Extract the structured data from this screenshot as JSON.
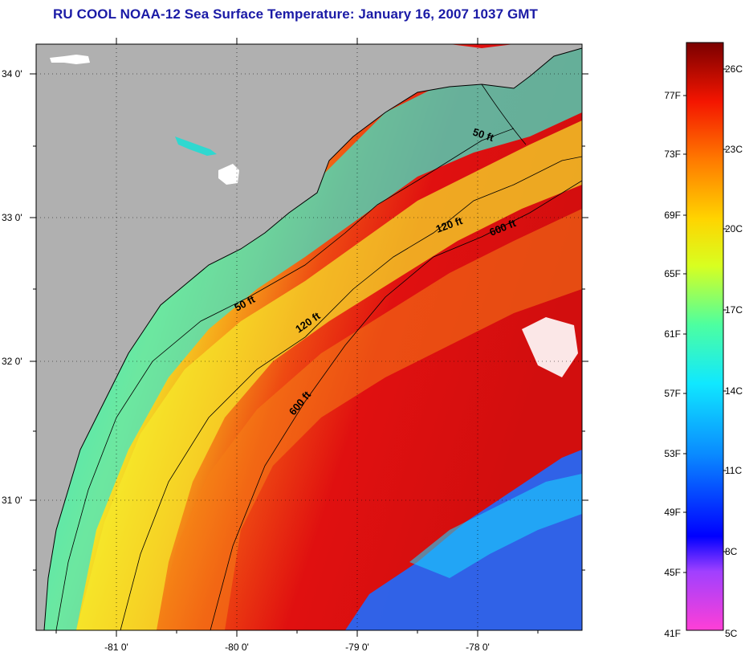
{
  "title": "RU COOL  NOAA-12  Sea Surface Temperature:  January 16, 2007 1037 GMT",
  "map": {
    "lat_ticks": [
      "34 0'",
      "33 0'",
      "32 0'",
      "31 0'"
    ],
    "lon_ticks": [
      "-81 0'",
      "-80 0'",
      "-79 0'",
      "-78 0'"
    ],
    "contour_labels": [
      "50 ft",
      "120 ft",
      "600 ft",
      "50 ft",
      "120 ft",
      "600 ft"
    ],
    "colors": {
      "land": "#b0b0b0",
      "cold": "#1e6cff",
      "cool": "#19e8e8",
      "mid": "#f2e628",
      "warm": "#f57a10",
      "hot": "#e81212"
    }
  },
  "colorbar": {
    "fahrenheit_labels": [
      "77F",
      "73F",
      "69F",
      "65F",
      "61F",
      "57F",
      "53F",
      "49F",
      "45F",
      "41F"
    ],
    "celsius_labels": [
      "26C",
      "23C",
      "20C",
      "17C",
      "14C",
      "11C",
      "8C",
      "5C"
    ]
  }
}
